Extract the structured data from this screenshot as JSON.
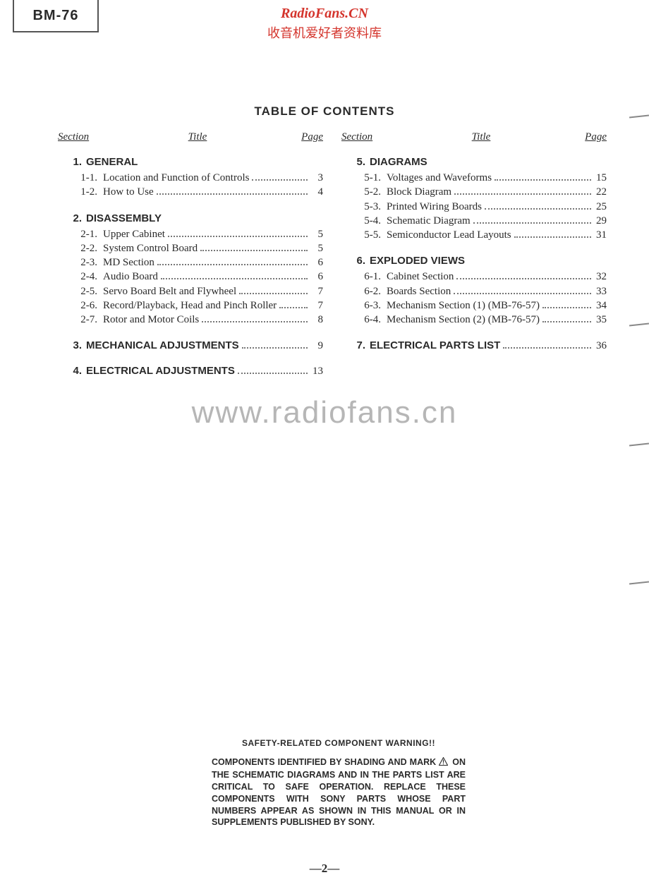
{
  "model": "BM-76",
  "brand": "RadioFans.CN",
  "brand_sub": "收音机爱好者资料库",
  "title": "TABLE OF CONTENTS",
  "watermark": "www.radiofans.cn",
  "page_number": "—2—",
  "column_headers": {
    "section": "Section",
    "title": "Title",
    "page": "Page"
  },
  "left_sections": [
    {
      "num": "1.",
      "title": "GENERAL",
      "page": null,
      "items": [
        {
          "num": "1-1.",
          "title": "Location and Function of Controls",
          "page": "3"
        },
        {
          "num": "1-2.",
          "title": "How to Use",
          "page": "4"
        }
      ]
    },
    {
      "num": "2.",
      "title": "DISASSEMBLY",
      "page": null,
      "items": [
        {
          "num": "2-1.",
          "title": "Upper Cabinet",
          "page": "5"
        },
        {
          "num": "2-2.",
          "title": "System Control Board",
          "page": "5"
        },
        {
          "num": "2-3.",
          "title": "MD Section",
          "page": "6"
        },
        {
          "num": "2-4.",
          "title": "Audio Board",
          "page": "6"
        },
        {
          "num": "2-5.",
          "title": "Servo Board Belt and Flywheel",
          "page": "7"
        },
        {
          "num": "2-6.",
          "title": "Record/Playback, Head and Pinch Roller",
          "page": "7"
        },
        {
          "num": "2-7.",
          "title": "Rotor and Motor Coils",
          "page": "8"
        }
      ]
    },
    {
      "num": "3.",
      "title": "MECHANICAL ADJUSTMENTS",
      "page": "9",
      "items": []
    },
    {
      "num": "4.",
      "title": "ELECTRICAL ADJUSTMENTS",
      "page": "13",
      "items": []
    }
  ],
  "right_sections": [
    {
      "num": "5.",
      "title": "DIAGRAMS",
      "page": null,
      "items": [
        {
          "num": "5-1.",
          "title": "Voltages and Waveforms",
          "page": "15"
        },
        {
          "num": "5-2.",
          "title": "Block Diagram",
          "page": "22"
        },
        {
          "num": "5-3.",
          "title": "Printed Wiring Boards",
          "page": "25"
        },
        {
          "num": "5-4.",
          "title": "Schematic Diagram",
          "page": "29"
        },
        {
          "num": "5-5.",
          "title": "Semiconductor Lead Layouts",
          "page": "31"
        }
      ]
    },
    {
      "num": "6.",
      "title": "EXPLODED VIEWS",
      "page": null,
      "items": [
        {
          "num": "6-1.",
          "title": "Cabinet Section",
          "page": "32"
        },
        {
          "num": "6-2.",
          "title": "Boards Section",
          "page": "33"
        },
        {
          "num": "6-3.",
          "title": "Mechanism Section (1) (MB-76-57)",
          "page": "34"
        },
        {
          "num": "6-4.",
          "title": "Mechanism Section (2) (MB-76-57)",
          "page": "35"
        }
      ]
    },
    {
      "num": "7.",
      "title": "ELECTRICAL PARTS LIST",
      "page": "36",
      "items": []
    }
  ],
  "warning": {
    "title": "SAFETY-RELATED COMPONENT WARNING!!",
    "body_pre": "COMPONENTS IDENTIFIED BY SHADING AND MARK ",
    "body_post": " ON THE SCHEMATIC DIAGRAMS AND IN THE PARTS LIST ARE CRITICAL TO SAFE OPERATION. REPLACE THESE COMPONENTS WITH SONY PARTS WHOSE PART NUMBERS APPEAR AS SHOWN IN THIS MANUAL OR IN SUPPLEMENTS PUBLISHED BY SONY."
  },
  "styling": {
    "page_bg": "#ffffff",
    "text_color": "#2a2a2a",
    "brand_color": "#d4342c",
    "watermark_color": "#b6b6b6",
    "model_box_border": "#555555",
    "dot_leader_color": "#777777",
    "body_font": "Times New Roman",
    "heading_font": "Arial",
    "title_fontsize_pt": 13,
    "body_fontsize_pt": 11,
    "section_fontsize_pt": 11,
    "watermark_fontsize_pt": 33,
    "brand_fontsize_pt": 15
  }
}
